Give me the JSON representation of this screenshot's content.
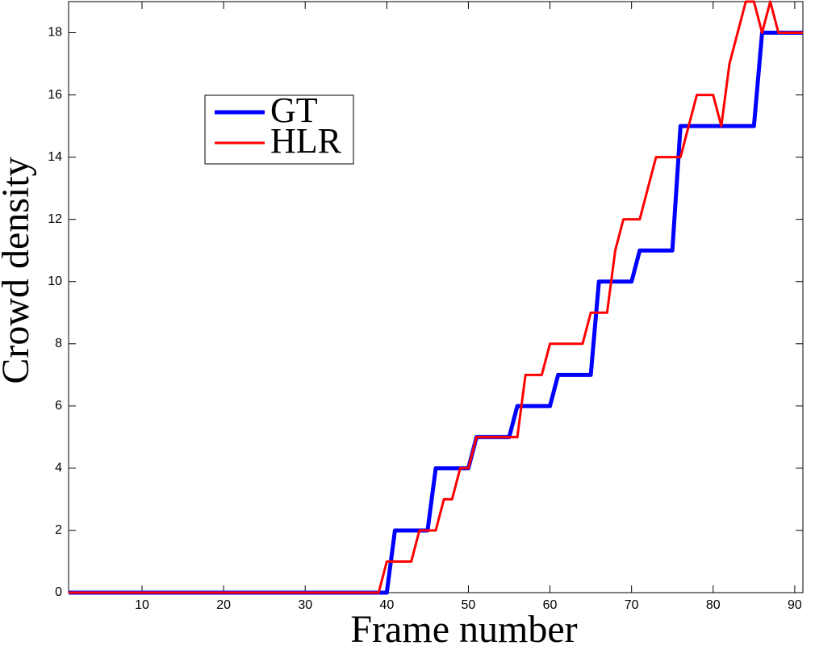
{
  "chart_data": {
    "type": "line",
    "xlabel": "Frame number",
    "ylabel": "Crowd density",
    "x": [
      1,
      2,
      3,
      4,
      5,
      6,
      7,
      8,
      9,
      10,
      11,
      12,
      13,
      14,
      15,
      16,
      17,
      18,
      19,
      20,
      21,
      22,
      23,
      24,
      25,
      26,
      27,
      28,
      29,
      30,
      31,
      32,
      33,
      34,
      35,
      36,
      37,
      38,
      39,
      40,
      41,
      42,
      43,
      44,
      45,
      46,
      47,
      48,
      49,
      50,
      51,
      52,
      53,
      54,
      55,
      56,
      57,
      58,
      59,
      60,
      61,
      62,
      63,
      64,
      65,
      66,
      67,
      68,
      69,
      70,
      71,
      72,
      73,
      74,
      75,
      76,
      77,
      78,
      79,
      80,
      81,
      82,
      83,
      84,
      85,
      86,
      87,
      88,
      89,
      90,
      91
    ],
    "series": [
      {
        "name": "GT",
        "color": "#0000ff",
        "width": 5,
        "values": [
          0,
          0,
          0,
          0,
          0,
          0,
          0,
          0,
          0,
          0,
          0,
          0,
          0,
          0,
          0,
          0,
          0,
          0,
          0,
          0,
          0,
          0,
          0,
          0,
          0,
          0,
          0,
          0,
          0,
          0,
          0,
          0,
          0,
          0,
          0,
          0,
          0,
          0,
          0,
          0,
          2,
          2,
          2,
          2,
          2,
          4,
          4,
          4,
          4,
          4,
          5,
          5,
          5,
          5,
          5,
          6,
          6,
          6,
          6,
          6,
          7,
          7,
          7,
          7,
          7,
          10,
          10,
          10,
          10,
          10,
          11,
          11,
          11,
          11,
          11,
          15,
          15,
          15,
          15,
          15,
          15,
          15,
          15,
          15,
          15,
          18,
          18,
          18,
          18,
          18,
          18
        ]
      },
      {
        "name": "HLR",
        "color": "#ff0000",
        "width": 3,
        "values": [
          0,
          0,
          0,
          0,
          0,
          0,
          0,
          0,
          0,
          0,
          0,
          0,
          0,
          0,
          0,
          0,
          0,
          0,
          0,
          0,
          0,
          0,
          0,
          0,
          0,
          0,
          0,
          0,
          0,
          0,
          0,
          0,
          0,
          0,
          0,
          0,
          0,
          0,
          0,
          1,
          1,
          1,
          1,
          2,
          2,
          2,
          3,
          3,
          4,
          4,
          5,
          5,
          5,
          5,
          5,
          5,
          7,
          7,
          7,
          8,
          8,
          8,
          8,
          8,
          9,
          9,
          9,
          11,
          12,
          12,
          12,
          13,
          14,
          14,
          14,
          14,
          15,
          16,
          16,
          16,
          15,
          17,
          18,
          19,
          19,
          18,
          19,
          18,
          18,
          18,
          18
        ]
      }
    ],
    "xlim": [
      1,
      91
    ],
    "xticks": [
      10,
      20,
      30,
      40,
      50,
      60,
      70,
      80,
      90
    ],
    "ylim": [
      0,
      19
    ],
    "yticks": [
      0,
      2,
      4,
      6,
      8,
      10,
      12,
      14,
      16,
      18
    ]
  }
}
